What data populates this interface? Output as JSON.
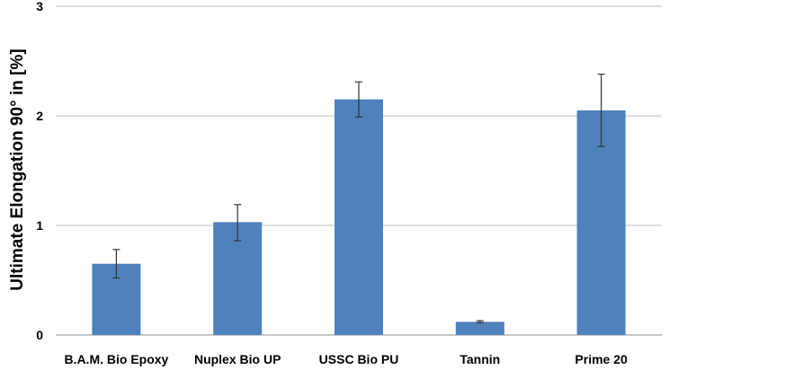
{
  "chart_data": {
    "type": "bar",
    "title": "",
    "xlabel": "",
    "ylabel": "Ultimate Elongation 90° in [%]",
    "ylim": [
      0,
      3
    ],
    "yticks": [
      "0",
      "1",
      "2",
      "3"
    ],
    "grid": true,
    "categories": [
      "B.A.M. Bio Epoxy",
      "Nuplex Bio UP",
      "USSC Bio PU",
      "Tannin",
      "Prime 20"
    ],
    "values": [
      0.65,
      1.03,
      2.15,
      0.12,
      2.05
    ],
    "error_low": [
      0.52,
      0.86,
      1.99,
      0.11,
      1.72
    ],
    "error_high": [
      0.78,
      1.19,
      2.31,
      0.13,
      2.38
    ],
    "bar_color": "#4f81bd",
    "grid_color": "#bfbfbf"
  }
}
